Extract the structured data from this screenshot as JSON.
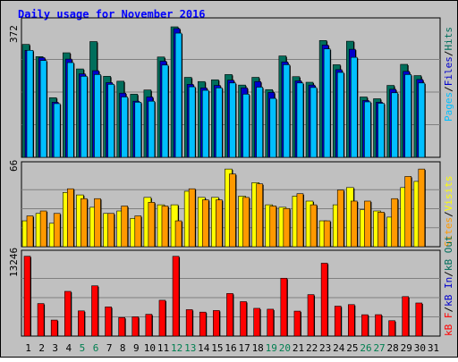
{
  "title": "Daily usage for November 2016",
  "colors": {
    "background": "#c0c0c0",
    "frame": "#ffffff",
    "title": "#0000ff",
    "hits": "#006e5c",
    "files": "#0000cc",
    "pages": "#00bfff",
    "visits": "#ffff00",
    "sites": "#ff9900",
    "kb_in": "#0000cc",
    "kb_out": "#006e5c",
    "kb_f": "#ff0000",
    "weekend_day": "#007f50",
    "weekday": "#000000"
  },
  "right_labels": {
    "top": [
      "Pages",
      "/",
      "Files",
      "/",
      "Hits"
    ],
    "middle": [
      "Sites",
      "/",
      "Visits"
    ],
    "bottom": [
      "kB F",
      "/",
      "kB In",
      "/",
      "kB Out"
    ]
  },
  "chart_data": [
    {
      "type": "bar",
      "title": "Daily usage for November 2016",
      "panel": "hits-files-pages",
      "ymax_label": "372",
      "ylim": [
        0,
        372
      ],
      "x": [
        1,
        2,
        3,
        4,
        5,
        6,
        7,
        8,
        9,
        10,
        11,
        12,
        13,
        14,
        15,
        16,
        17,
        18,
        19,
        20,
        21,
        22,
        23,
        24,
        25,
        26,
        27,
        28,
        29,
        30,
        31
      ],
      "series": [
        {
          "name": "Hits",
          "values": [
            322,
            287,
            170,
            298,
            252,
            330,
            231,
            217,
            180,
            192,
            286,
            372,
            228,
            216,
            221,
            236,
            206,
            228,
            193,
            289,
            230,
            214,
            333,
            264,
            331,
            172,
            167,
            205,
            265,
            233,
            0
          ]
        },
        {
          "name": "Files",
          "values": [
            305,
            284,
            157,
            280,
            238,
            247,
            213,
            183,
            160,
            172,
            274,
            367,
            208,
            198,
            205,
            220,
            198,
            216,
            185,
            272,
            218,
            206,
            320,
            250,
            308,
            162,
            157,
            194,
            245,
            222,
            0
          ]
        },
        {
          "name": "Pages",
          "values": [
            305,
            276,
            153,
            270,
            231,
            236,
            208,
            172,
            157,
            160,
            263,
            354,
            201,
            191,
            198,
            212,
            180,
            200,
            168,
            264,
            212,
            199,
            309,
            242,
            285,
            158,
            154,
            184,
            236,
            212,
            0
          ]
        }
      ]
    },
    {
      "type": "bar",
      "panel": "visits-sites",
      "ymax_label": "66",
      "ylim": [
        0,
        66
      ],
      "x": [
        1,
        2,
        3,
        4,
        5,
        6,
        7,
        8,
        9,
        10,
        11,
        12,
        13,
        14,
        15,
        16,
        17,
        18,
        19,
        20,
        21,
        22,
        23,
        24,
        25,
        26,
        27,
        28,
        29,
        30,
        31
      ],
      "series": [
        {
          "name": "Visits",
          "values": [
            21,
            27,
            19,
            44,
            42,
            32,
            27,
            29,
            23,
            40,
            34,
            34,
            45,
            40,
            40,
            63,
            41,
            52,
            34,
            32,
            41,
            37,
            21,
            34,
            48,
            30,
            29,
            24,
            48,
            53,
            0
          ]
        },
        {
          "name": "Sites",
          "values": [
            25,
            29,
            27,
            47,
            39,
            39,
            27,
            33,
            25,
            36,
            33,
            21,
            47,
            38,
            38,
            59,
            40,
            51,
            33,
            31,
            43,
            34,
            21,
            46,
            37,
            37,
            28,
            39,
            57,
            63,
            0
          ]
        }
      ]
    },
    {
      "type": "bar",
      "panel": "kbytes",
      "ymax_label": "13246",
      "ylim": [
        0,
        13246
      ],
      "x": [
        1,
        2,
        3,
        4,
        5,
        6,
        7,
        8,
        9,
        10,
        11,
        12,
        13,
        14,
        15,
        16,
        17,
        18,
        19,
        20,
        21,
        22,
        23,
        24,
        25,
        26,
        27,
        28,
        29,
        30,
        31
      ],
      "series": [
        {
          "name": "kB F",
          "values": [
            12860,
            5240,
            2580,
            7200,
            4060,
            8100,
            4700,
            2990,
            3100,
            3510,
            5770,
            12850,
            4260,
            3860,
            4120,
            6860,
            5550,
            4470,
            4330,
            9320,
            4020,
            6680,
            11740,
            4820,
            5070,
            3440,
            3450,
            2480,
            6360,
            5330,
            0
          ]
        }
      ]
    }
  ]
}
